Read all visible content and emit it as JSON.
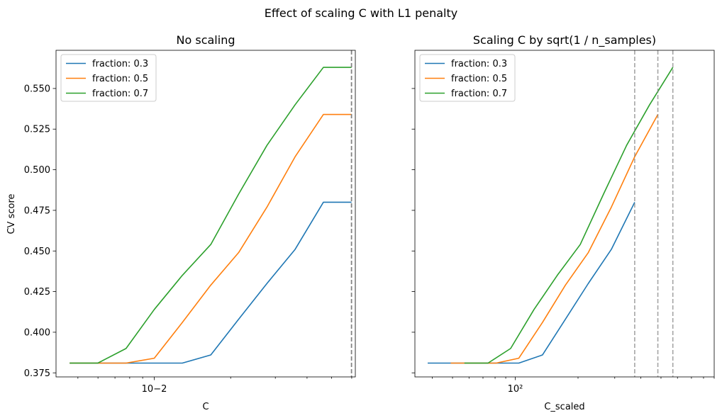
{
  "figure": {
    "suptitle": "Effect of scaling C with L1 penalty"
  },
  "chart_data": [
    {
      "type": "line",
      "title": "No scaling",
      "xlabel": "C",
      "ylabel": "CV score",
      "xscale": "log",
      "xlim": [
        0.0041,
        0.062
      ],
      "ylim": [
        0.3725,
        0.5735
      ],
      "yticks": [
        0.375,
        0.4,
        0.425,
        0.45,
        0.475,
        0.5,
        0.525,
        0.55
      ],
      "ytick_labels": [
        "0.375",
        "0.400",
        "0.425",
        "0.450",
        "0.475",
        "0.500",
        "0.525",
        "0.550"
      ],
      "xticks": [
        0.01
      ],
      "xtick_labels": [
        "10−2"
      ],
      "legend": "upper-left",
      "series": [
        {
          "name": "fraction: 0.3",
          "color": "#1f77b4",
          "x": [
            0.00464,
            0.00599,
            0.00774,
            0.01,
            0.0129,
            0.0167,
            0.0215,
            0.0278,
            0.0359,
            0.0464,
            0.0599
          ],
          "y": [
            0.381,
            0.381,
            0.381,
            0.381,
            0.381,
            0.386,
            0.408,
            0.43,
            0.451,
            0.48,
            0.48
          ]
        },
        {
          "name": "fraction: 0.5",
          "color": "#ff7f0e",
          "x": [
            0.00464,
            0.00599,
            0.00774,
            0.01,
            0.0129,
            0.0167,
            0.0215,
            0.0278,
            0.0359,
            0.0464,
            0.0599
          ],
          "y": [
            0.381,
            0.381,
            0.381,
            0.384,
            0.406,
            0.429,
            0.449,
            0.477,
            0.508,
            0.534,
            0.534
          ]
        },
        {
          "name": "fraction: 0.7",
          "color": "#2ca02c",
          "x": [
            0.00464,
            0.00599,
            0.00774,
            0.01,
            0.0129,
            0.0167,
            0.0215,
            0.0278,
            0.0359,
            0.0464,
            0.0599
          ],
          "y": [
            0.381,
            0.381,
            0.39,
            0.414,
            0.435,
            0.454,
            0.485,
            0.515,
            0.54,
            0.563,
            0.563
          ]
        }
      ],
      "vlines": [
        0.0599,
        0.0599,
        0.0599
      ]
    },
    {
      "type": "line",
      "title": "Scaling C by sqrt(1 / n_samples)",
      "xlabel": "C_scaled",
      "ylabel": "",
      "xscale": "log",
      "xlim": [
        33,
        900
      ],
      "ylim": [
        0.3725,
        0.5735
      ],
      "yticks": [
        0.375,
        0.4,
        0.425,
        0.45,
        0.475,
        0.5,
        0.525,
        0.55
      ],
      "xticks": [
        100
      ],
      "xtick_labels": [
        "10²"
      ],
      "legend": "upper-left",
      "series": [
        {
          "name": "fraction: 0.3",
          "color": "#1f77b4",
          "x": [
            38,
            49,
            63,
            81,
            104,
            135,
            174,
            224,
            289,
            374
          ],
          "y": [
            0.381,
            0.381,
            0.381,
            0.381,
            0.381,
            0.386,
            0.408,
            0.43,
            0.451,
            0.48
          ]
        },
        {
          "name": "fraction: 0.5",
          "color": "#ff7f0e",
          "x": [
            49,
            63,
            81,
            104,
            135,
            174,
            224,
            289,
            374,
            483
          ],
          "y": [
            0.381,
            0.381,
            0.381,
            0.384,
            0.406,
            0.429,
            0.449,
            0.477,
            0.508,
            0.534
          ]
        },
        {
          "name": "fraction: 0.7",
          "color": "#2ca02c",
          "x": [
            57,
            74,
            95,
            123,
            159,
            205,
            265,
            342,
            441,
            570
          ],
          "y": [
            0.381,
            0.381,
            0.39,
            0.414,
            0.435,
            0.454,
            0.485,
            0.515,
            0.54,
            0.563
          ]
        }
      ],
      "vlines": [
        374,
        483,
        570
      ]
    }
  ]
}
